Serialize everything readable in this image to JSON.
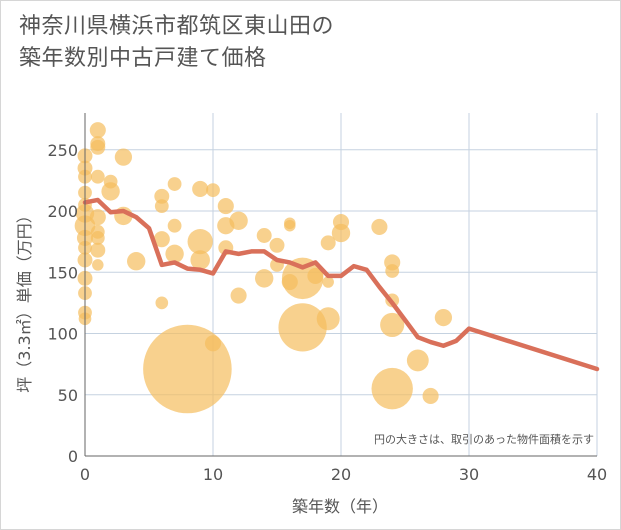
{
  "title_line1": "神奈川県横浜市都筑区東山田の",
  "title_line2": "築年数別中古戸建て価格",
  "chart_data": {
    "type": "scatter",
    "xlabel": "築年数（年）",
    "ylabel": "坪（3.3㎡）単価（万円）",
    "note": "円の大きさは、取引のあった物件面積を示す",
    "xlim": [
      0,
      40
    ],
    "ylim": [
      0,
      280
    ],
    "x_ticks": [
      "0",
      "10",
      "20",
      "30",
      "40"
    ],
    "y_ticks": [
      "0",
      "50",
      "100",
      "150",
      "200",
      "250"
    ],
    "grid": true,
    "bubble_color": "#f5be5e",
    "line_color": "#d9705a",
    "bubbles": [
      {
        "x": 0,
        "y": 245,
        "s": 1.3
      },
      {
        "x": 0,
        "y": 235,
        "s": 1.3
      },
      {
        "x": 0,
        "y": 228,
        "s": 1.2
      },
      {
        "x": 0,
        "y": 215,
        "s": 1.2
      },
      {
        "x": 0,
        "y": 205,
        "s": 1.2
      },
      {
        "x": 0,
        "y": 198,
        "s": 1.6
      },
      {
        "x": 0,
        "y": 188,
        "s": 1.8
      },
      {
        "x": 0,
        "y": 178,
        "s": 1.4
      },
      {
        "x": 0,
        "y": 170,
        "s": 1.2
      },
      {
        "x": 0,
        "y": 160,
        "s": 1.3
      },
      {
        "x": 0,
        "y": 145,
        "s": 1.3
      },
      {
        "x": 0,
        "y": 133,
        "s": 1.2
      },
      {
        "x": 0,
        "y": 117,
        "s": 1.2
      },
      {
        "x": 0,
        "y": 112,
        "s": 1.1
      },
      {
        "x": 1,
        "y": 266,
        "s": 1.4
      },
      {
        "x": 1,
        "y": 255,
        "s": 1.3
      },
      {
        "x": 1,
        "y": 252,
        "s": 1.3
      },
      {
        "x": 1,
        "y": 228,
        "s": 1.2
      },
      {
        "x": 1,
        "y": 195,
        "s": 1.4
      },
      {
        "x": 1,
        "y": 183,
        "s": 1.2
      },
      {
        "x": 1,
        "y": 178,
        "s": 1.2
      },
      {
        "x": 1,
        "y": 168,
        "s": 1.3
      },
      {
        "x": 1,
        "y": 156,
        "s": 1.0
      },
      {
        "x": 2,
        "y": 224,
        "s": 1.2
      },
      {
        "x": 2,
        "y": 216,
        "s": 1.6
      },
      {
        "x": 3,
        "y": 244,
        "s": 1.5
      },
      {
        "x": 3,
        "y": 196,
        "s": 1.6
      },
      {
        "x": 4,
        "y": 159,
        "s": 1.6
      },
      {
        "x": 6,
        "y": 212,
        "s": 1.3
      },
      {
        "x": 6,
        "y": 204,
        "s": 1.2
      },
      {
        "x": 6,
        "y": 177,
        "s": 1.4
      },
      {
        "x": 6,
        "y": 125,
        "s": 1.1
      },
      {
        "x": 7,
        "y": 222,
        "s": 1.2
      },
      {
        "x": 7,
        "y": 188,
        "s": 1.2
      },
      {
        "x": 7,
        "y": 165,
        "s": 1.6
      },
      {
        "x": 8,
        "y": 71,
        "s": 7.7
      },
      {
        "x": 9,
        "y": 218,
        "s": 1.4
      },
      {
        "x": 9,
        "y": 175,
        "s": 2.2
      },
      {
        "x": 9,
        "y": 160,
        "s": 1.7
      },
      {
        "x": 10,
        "y": 217,
        "s": 1.2
      },
      {
        "x": 10,
        "y": 92,
        "s": 1.4
      },
      {
        "x": 11,
        "y": 204,
        "s": 1.4
      },
      {
        "x": 11,
        "y": 188,
        "s": 1.5
      },
      {
        "x": 11,
        "y": 170,
        "s": 1.3
      },
      {
        "x": 12,
        "y": 192,
        "s": 1.6
      },
      {
        "x": 12,
        "y": 131,
        "s": 1.4
      },
      {
        "x": 14,
        "y": 180,
        "s": 1.3
      },
      {
        "x": 14,
        "y": 145,
        "s": 1.6
      },
      {
        "x": 15,
        "y": 172,
        "s": 1.3
      },
      {
        "x": 15,
        "y": 156,
        "s": 1.2
      },
      {
        "x": 16,
        "y": 190,
        "s": 1.0
      },
      {
        "x": 16,
        "y": 188,
        "s": 1.0
      },
      {
        "x": 16,
        "y": 142,
        "s": 1.4
      },
      {
        "x": 17,
        "y": 145,
        "s": 3.6
      },
      {
        "x": 17,
        "y": 105,
        "s": 4.2
      },
      {
        "x": 18,
        "y": 147,
        "s": 1.4
      },
      {
        "x": 19,
        "y": 174,
        "s": 1.3
      },
      {
        "x": 19,
        "y": 142,
        "s": 1.0
      },
      {
        "x": 19,
        "y": 112,
        "s": 2.0
      },
      {
        "x": 20,
        "y": 191,
        "s": 1.4
      },
      {
        "x": 20,
        "y": 182,
        "s": 1.6
      },
      {
        "x": 23,
        "y": 187,
        "s": 1.4
      },
      {
        "x": 24,
        "y": 158,
        "s": 1.4
      },
      {
        "x": 24,
        "y": 151,
        "s": 1.2
      },
      {
        "x": 24,
        "y": 127,
        "s": 1.2
      },
      {
        "x": 24,
        "y": 107,
        "s": 2.1
      },
      {
        "x": 24,
        "y": 55,
        "s": 3.6
      },
      {
        "x": 26,
        "y": 78,
        "s": 1.9
      },
      {
        "x": 27,
        "y": 49,
        "s": 1.4
      },
      {
        "x": 28,
        "y": 113,
        "s": 1.5
      }
    ],
    "trend": {
      "x": [
        0,
        1,
        2,
        3,
        4,
        5,
        6,
        7,
        8,
        9,
        10,
        11,
        12,
        13,
        14,
        15,
        16,
        17,
        18,
        19,
        20,
        21,
        22,
        23,
        24,
        25,
        26,
        27,
        28,
        29,
        30,
        40
      ],
      "y": [
        207,
        209,
        199,
        200,
        195,
        186,
        156,
        158,
        153,
        152,
        149,
        167,
        165,
        167,
        167,
        160,
        158,
        154,
        158,
        147,
        147,
        155,
        152,
        138,
        125,
        111,
        97,
        93,
        90,
        94,
        104,
        71
      ]
    }
  }
}
